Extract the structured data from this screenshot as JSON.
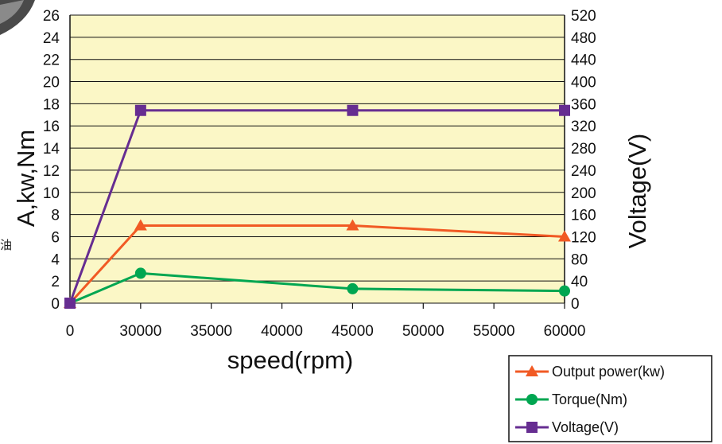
{
  "edge_text": "油",
  "chart_data": {
    "type": "line",
    "x": [
      0,
      30000,
      45000,
      60000
    ],
    "x_ticks": [
      0,
      30000,
      35000,
      40000,
      45000,
      50000,
      55000,
      60000
    ],
    "x_tick_labels": [
      "0",
      "30000",
      "35000",
      "40000",
      "45000",
      "50000",
      "55000",
      "60000"
    ],
    "xlabel": "speed(rpm)",
    "ylabel": "A,kw,Nm",
    "y2label": "Voltage(V)",
    "ylim": [
      0,
      26
    ],
    "y2lim": [
      0,
      520
    ],
    "y_ticks": [
      0,
      2,
      4,
      6,
      8,
      10,
      12,
      14,
      16,
      18,
      20,
      22,
      24,
      26
    ],
    "y2_ticks": [
      0,
      40,
      80,
      120,
      160,
      200,
      240,
      280,
      320,
      360,
      400,
      440,
      480,
      520
    ],
    "grid": true,
    "plot_background": "#fbf7c6",
    "legend_position": "bottom-right",
    "series": [
      {
        "name": "Output power(kw)",
        "axis": "left",
        "marker": "triangle",
        "color": "#f15a24",
        "values": [
          0,
          7,
          7,
          6
        ]
      },
      {
        "name": "Torque(Nm)",
        "axis": "left",
        "marker": "circle",
        "color": "#00a651",
        "values": [
          0,
          2.7,
          1.3,
          1.1
        ]
      },
      {
        "name": "Voltage(V)",
        "axis": "right",
        "marker": "square",
        "color": "#662d91",
        "values": [
          0,
          348,
          348,
          348
        ]
      }
    ]
  }
}
